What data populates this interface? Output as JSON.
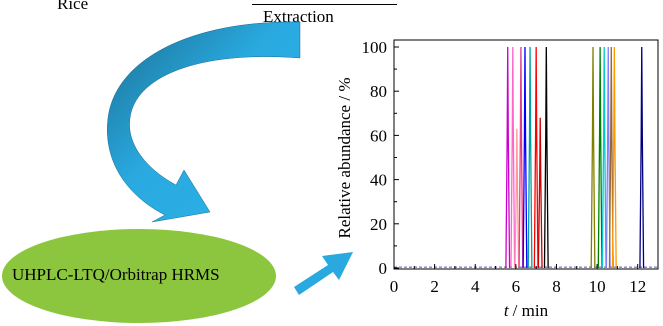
{
  "labels": {
    "rice": "Rice",
    "extraction": "Extraction",
    "instrument": "UHPLC-LTQ/Orbitrap HRMS"
  },
  "colors": {
    "arrow": "#29a9df",
    "arrow_dark": "#1b6e92",
    "ellipse": "#8cc63f"
  },
  "chart_data": {
    "type": "line",
    "title": "",
    "xlabel_var": "t",
    "xlabel_unit": "/ min",
    "ylabel": "Relative abundance / %",
    "xlim": [
      0,
      13
    ],
    "ylim": [
      0,
      100
    ],
    "xticks": [
      "0",
      "2",
      "4",
      "6",
      "8",
      "10",
      "12"
    ],
    "yticks": [
      "0",
      "20",
      "40",
      "60",
      "80",
      "100"
    ],
    "peaks": [
      {
        "rt": 5.6,
        "height": 100,
        "color": "#cc00cc"
      },
      {
        "rt": 5.85,
        "height": 100,
        "color": "#ff66cc"
      },
      {
        "rt": 6.05,
        "height": 63,
        "color": "#ff9999"
      },
      {
        "rt": 6.25,
        "height": 100,
        "color": "#e03c8c"
      },
      {
        "rt": 6.45,
        "height": 100,
        "color": "#0000ff"
      },
      {
        "rt": 6.7,
        "height": 100,
        "color": "#00a0a0"
      },
      {
        "rt": 7.0,
        "height": 100,
        "color": "#ff0000"
      },
      {
        "rt": 7.2,
        "height": 68,
        "color": "#cc0000"
      },
      {
        "rt": 7.5,
        "height": 100,
        "color": "#000000"
      },
      {
        "rt": 9.8,
        "height": 100,
        "color": "#808000"
      },
      {
        "rt": 10.15,
        "height": 100,
        "color": "#008000"
      },
      {
        "rt": 10.35,
        "height": 100,
        "color": "#00cccc"
      },
      {
        "rt": 10.55,
        "height": 100,
        "color": "#8080ff"
      },
      {
        "rt": 10.7,
        "height": 100,
        "color": "#996633"
      },
      {
        "rt": 10.85,
        "height": 100,
        "color": "#ff9900"
      },
      {
        "rt": 12.2,
        "height": 100,
        "color": "#000080"
      }
    ]
  }
}
